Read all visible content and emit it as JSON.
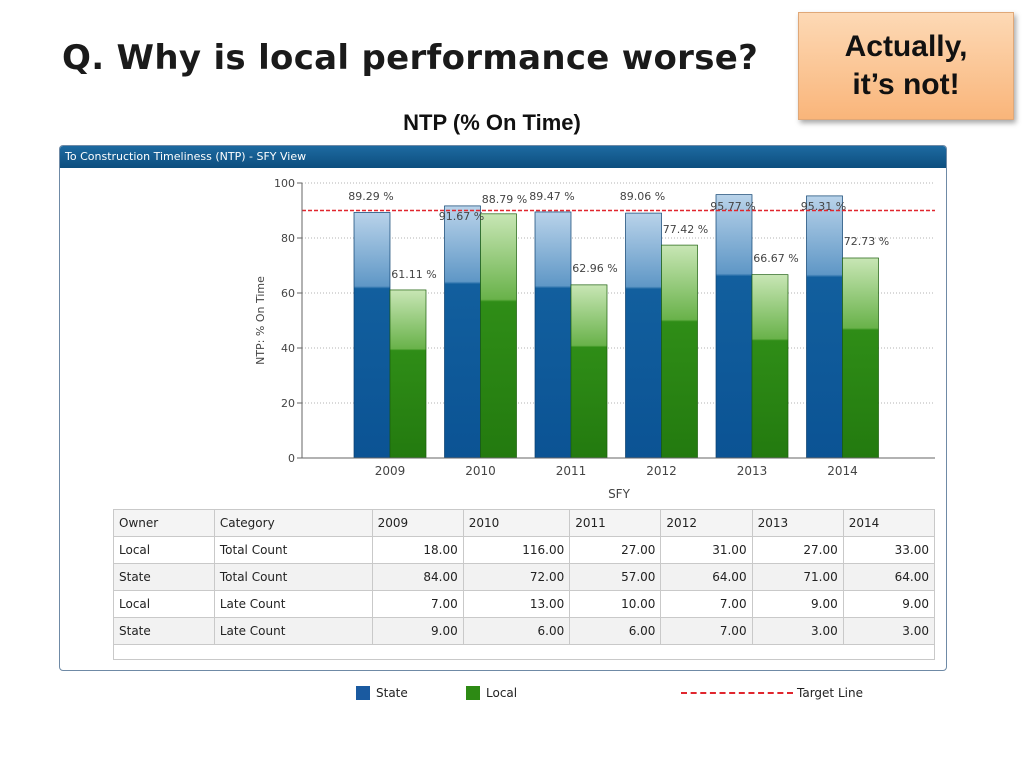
{
  "slide": {
    "title": "Q. Why is local performance worse?",
    "callout_line1": "Actually,",
    "callout_line2": "it’s not!",
    "chart_heading": "NTP (% On Time)"
  },
  "panel": {
    "header": "To Construction Timeliness (NTP) - SFY View"
  },
  "colors": {
    "state": "#1a5aa0",
    "local": "#2d8a14",
    "target": "#e0262e",
    "header": "#0d4e7e"
  },
  "chart_data": {
    "type": "bar",
    "categories": [
      "2009",
      "2010",
      "2011",
      "2012",
      "2013",
      "2014"
    ],
    "series": [
      {
        "name": "State",
        "values": [
          89.29,
          91.67,
          89.47,
          89.06,
          95.77,
          95.31
        ],
        "labels": [
          "89.29 %",
          "91.67 %",
          "89.47 %",
          "89.06 %",
          "95.77 %",
          "95.31 %"
        ]
      },
      {
        "name": "Local",
        "values": [
          61.11,
          88.79,
          62.96,
          77.42,
          66.67,
          72.73
        ],
        "labels": [
          "61.11 %",
          "88.79 %",
          "62.96 %",
          "77.42 %",
          "66.67 %",
          "72.73 %"
        ]
      }
    ],
    "target": {
      "name": "Target Line",
      "value": 90
    },
    "ylabel": "NTP: % On Time",
    "xlabel": "SFY",
    "ylim": [
      0,
      100
    ],
    "yticks": [
      0,
      20,
      40,
      60,
      80,
      100
    ],
    "grid": true,
    "legend_position": "bottom"
  },
  "table": {
    "columns": [
      "Owner",
      "Category",
      "2009",
      "2010",
      "2011",
      "2012",
      "2013",
      "2014"
    ],
    "rows": [
      [
        "Local",
        "Total Count",
        "18.00",
        "116.00",
        "27.00",
        "31.00",
        "27.00",
        "33.00"
      ],
      [
        "State",
        "Total Count",
        "84.00",
        "72.00",
        "57.00",
        "64.00",
        "71.00",
        "64.00"
      ],
      [
        "Local",
        "Late Count",
        "7.00",
        "13.00",
        "10.00",
        "7.00",
        "9.00",
        "9.00"
      ],
      [
        "State",
        "Late Count",
        "9.00",
        "6.00",
        "6.00",
        "7.00",
        "3.00",
        "3.00"
      ]
    ]
  },
  "legend": {
    "state": "State",
    "local": "Local",
    "target": "Target Line"
  }
}
